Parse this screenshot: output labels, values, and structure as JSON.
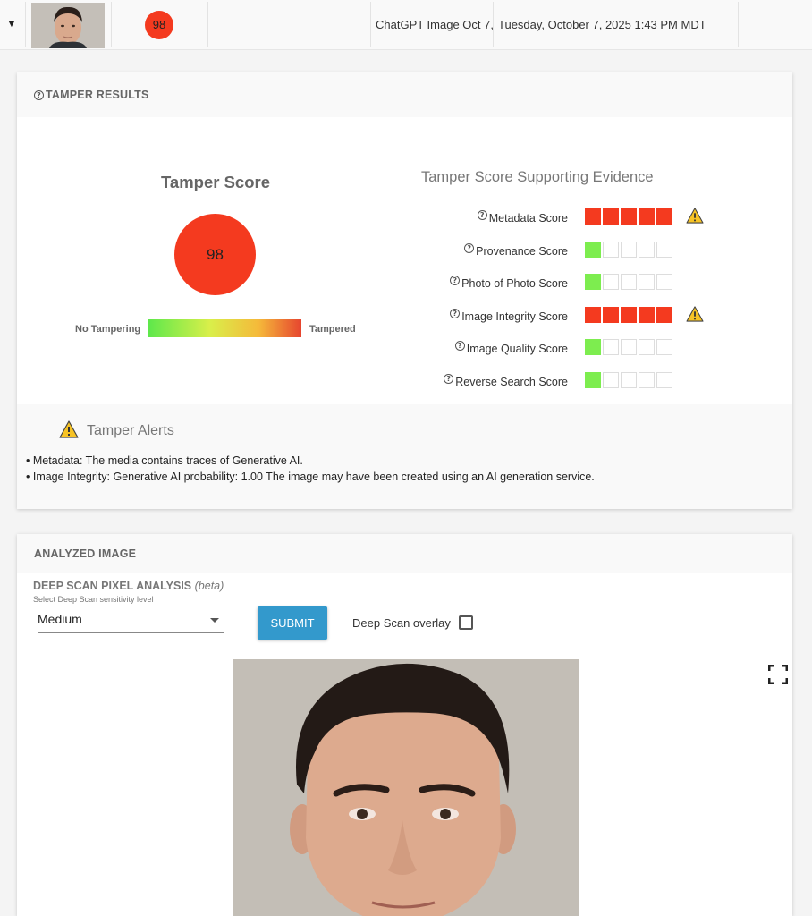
{
  "row": {
    "score": "98",
    "name": "ChatGPT Image Oct 7,",
    "date": "Tuesday, October 7, 2025 1:43 PM MDT"
  },
  "tamper_results": {
    "header": "TAMPER RESULTS",
    "score_title": "Tamper Score",
    "score_value": "98",
    "scale_left": "No Tampering",
    "scale_right": "Tampered",
    "colors": {
      "high": "#f43a1f",
      "low": "#7ded4f"
    }
  },
  "evidence": {
    "title": "Tamper Score Supporting Evidence",
    "items": [
      {
        "label": "Metadata Score",
        "level": 5,
        "color": "red",
        "warning": true
      },
      {
        "label": "Provenance Score",
        "level": 1,
        "color": "green",
        "warning": false
      },
      {
        "label": "Photo of Photo Score",
        "level": 1,
        "color": "green",
        "warning": false
      },
      {
        "label": "Image Integrity Score",
        "level": 5,
        "color": "red",
        "warning": true
      },
      {
        "label": "Image Quality Score",
        "level": 1,
        "color": "green",
        "warning": false
      },
      {
        "label": "Reverse Search Score",
        "level": 1,
        "color": "green",
        "warning": false
      }
    ]
  },
  "alerts": {
    "title": "Tamper Alerts",
    "lines": [
      "• Metadata: The media contains traces of Generative AI.",
      "• Image Integrity: Generative AI probability: 1.00 The image may have been created using an AI generation service."
    ]
  },
  "analyzed": {
    "header": "ANALYZED IMAGE",
    "deep_scan_title": "DEEP SCAN PIXEL ANALYSIS",
    "deep_scan_beta": "(beta)",
    "sensitivity_hint": "Select Deep Scan sensitivity level",
    "sensitivity_value": "Medium",
    "submit_label": "SUBMIT",
    "overlay_label": "Deep Scan overlay",
    "overlay_checked": false
  },
  "icons": {
    "caret": "caret-down-icon",
    "help": "question-circle-icon",
    "warning": "warning-triangle-icon",
    "fullscreen": "fullscreen-icon"
  }
}
